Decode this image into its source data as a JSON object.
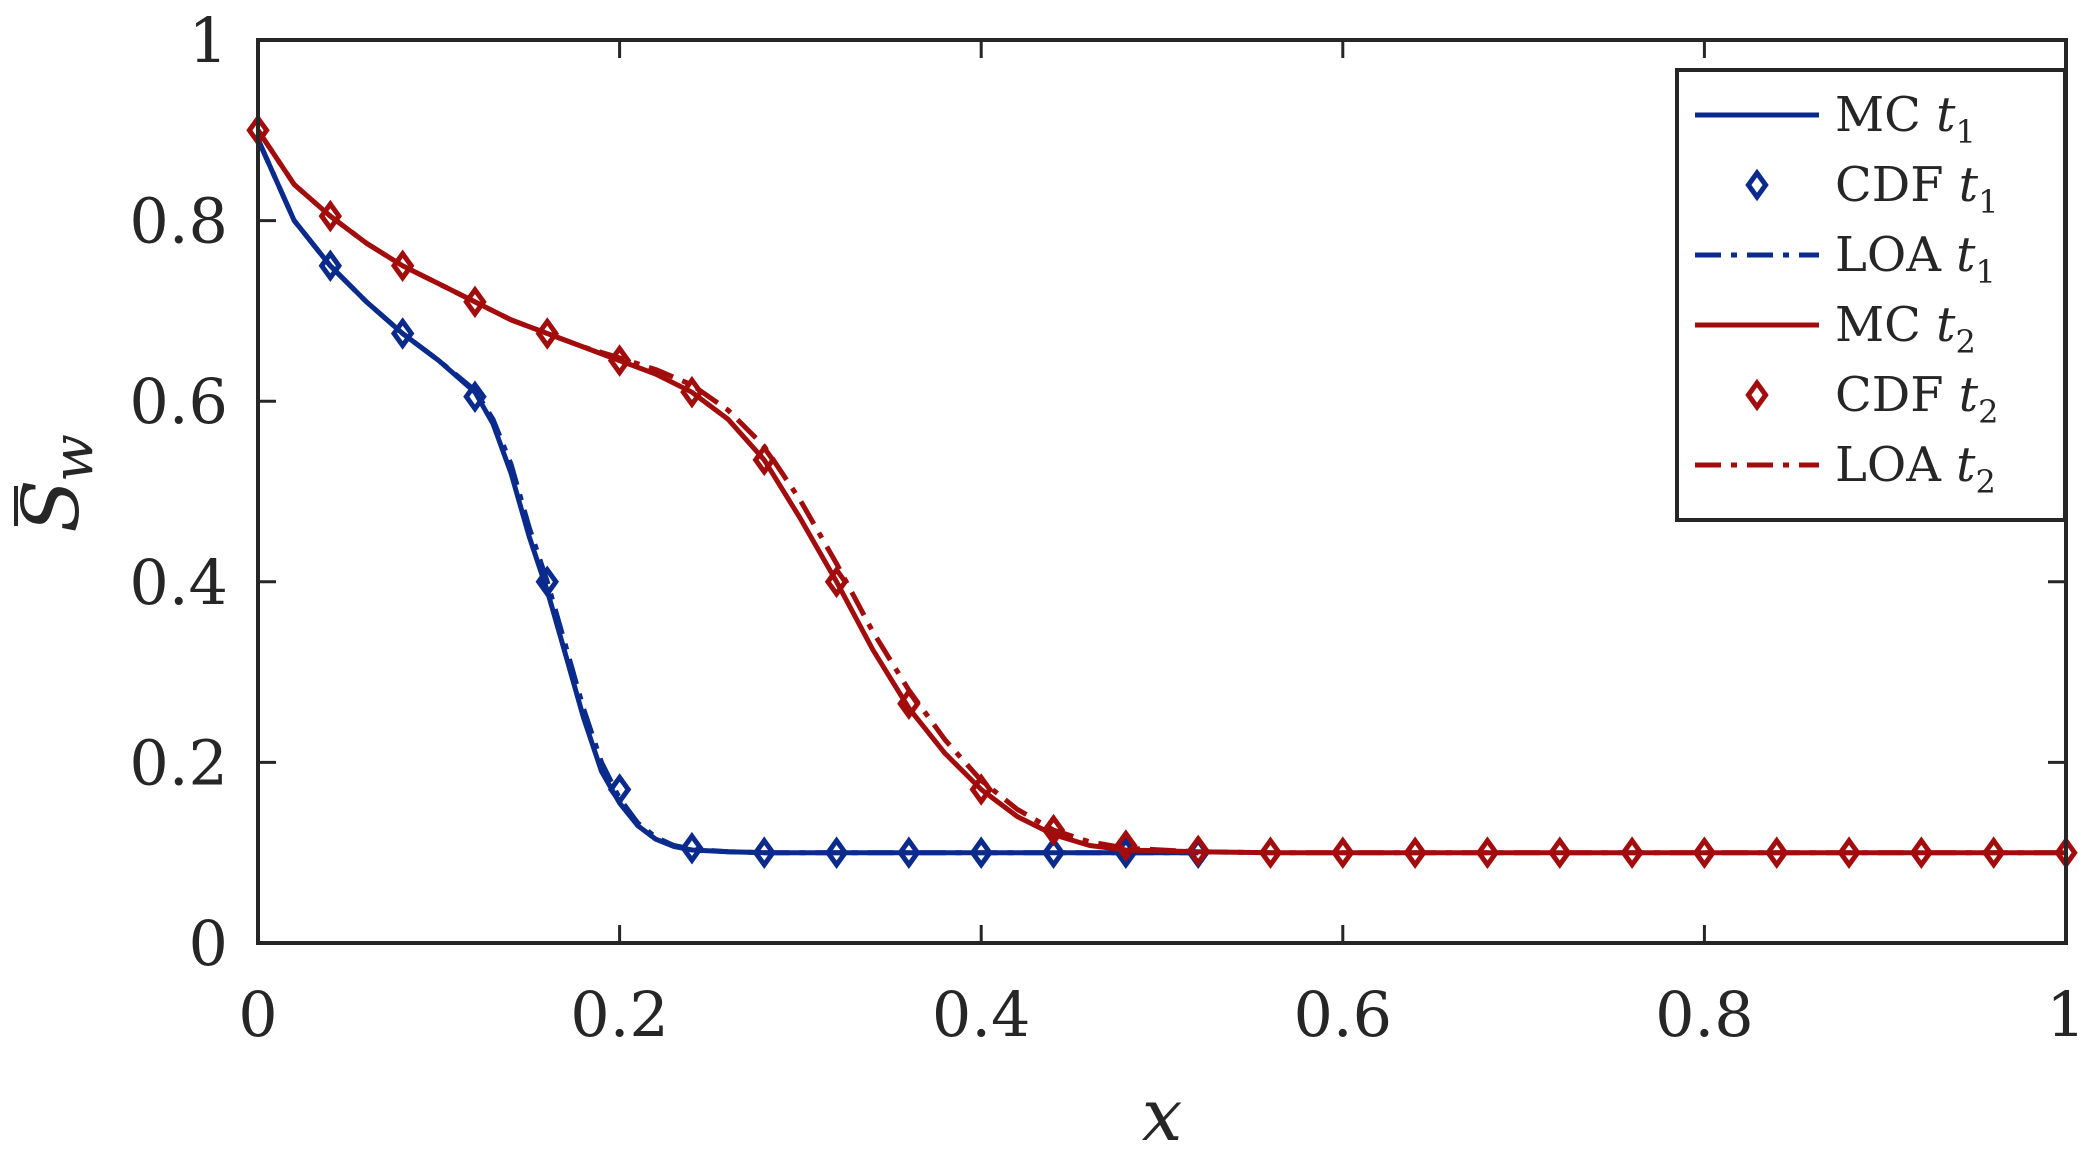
{
  "chart_data": {
    "type": "line",
    "xlabel": "x",
    "ylabel": {
      "base": "S",
      "sub": "w",
      "bar": true
    },
    "xlim": [
      0,
      1
    ],
    "ylim": [
      0,
      1
    ],
    "xticks": [
      0,
      0.2,
      0.4,
      0.6,
      0.8,
      1
    ],
    "xtick_labels": [
      "0",
      "0.2",
      "0.4",
      "0.6",
      "0.8",
      "1"
    ],
    "yticks": [
      0,
      0.2,
      0.4,
      0.6,
      0.8,
      1
    ],
    "ytick_labels": [
      "0",
      "0.2",
      "0.4",
      "0.6",
      "0.8",
      "1"
    ],
    "grid": false,
    "legend_position": "top-right",
    "colors": {
      "blue": "#0a2a8c",
      "red": "#a30c0c",
      "axis": "#262626"
    },
    "series": [
      {
        "name": "MC",
        "sub": "1",
        "color": "blue",
        "style": "solid",
        "x": [
          0,
          0.02,
          0.04,
          0.06,
          0.08,
          0.1,
          0.12,
          0.13,
          0.14,
          0.15,
          0.16,
          0.17,
          0.18,
          0.19,
          0.2,
          0.21,
          0.22,
          0.23,
          0.24,
          0.26,
          0.28,
          0.32,
          0.4,
          0.52
        ],
        "y": [
          0.89,
          0.8,
          0.75,
          0.71,
          0.675,
          0.645,
          0.61,
          0.575,
          0.52,
          0.45,
          0.39,
          0.32,
          0.25,
          0.19,
          0.155,
          0.13,
          0.115,
          0.107,
          0.103,
          0.101,
          0.1,
          0.1,
          0.1,
          0.1
        ]
      },
      {
        "name": "CDF",
        "sub": "1",
        "color": "blue",
        "style": "markers",
        "x": [
          0.04,
          0.08,
          0.12,
          0.16,
          0.2,
          0.24,
          0.28,
          0.32,
          0.36,
          0.4,
          0.44,
          0.48,
          0.52
        ],
        "y": [
          0.75,
          0.675,
          0.605,
          0.4,
          0.17,
          0.105,
          0.1,
          0.1,
          0.1,
          0.1,
          0.1,
          0.1,
          0.1
        ]
      },
      {
        "name": "LOA",
        "sub": "1",
        "color": "blue",
        "style": "dashdot",
        "x": [
          0,
          0.02,
          0.04,
          0.06,
          0.08,
          0.1,
          0.12,
          0.13,
          0.14,
          0.15,
          0.16,
          0.17,
          0.18,
          0.19,
          0.2,
          0.21,
          0.22,
          0.23,
          0.24,
          0.26,
          0.28,
          0.32,
          0.4,
          0.52
        ],
        "y": [
          0.89,
          0.8,
          0.75,
          0.71,
          0.675,
          0.645,
          0.612,
          0.58,
          0.53,
          0.46,
          0.4,
          0.33,
          0.26,
          0.2,
          0.16,
          0.133,
          0.117,
          0.108,
          0.104,
          0.101,
          0.1,
          0.1,
          0.1,
          0.1
        ]
      },
      {
        "name": "MC",
        "sub": "2",
        "color": "red",
        "style": "solid",
        "x": [
          0,
          0.02,
          0.04,
          0.06,
          0.08,
          0.1,
          0.12,
          0.14,
          0.16,
          0.18,
          0.2,
          0.22,
          0.24,
          0.26,
          0.28,
          0.3,
          0.32,
          0.34,
          0.36,
          0.38,
          0.4,
          0.42,
          0.44,
          0.46,
          0.48,
          0.52,
          0.56,
          0.6,
          1.0
        ],
        "y": [
          0.9,
          0.84,
          0.805,
          0.775,
          0.75,
          0.73,
          0.71,
          0.69,
          0.675,
          0.66,
          0.645,
          0.63,
          0.61,
          0.58,
          0.535,
          0.47,
          0.4,
          0.325,
          0.26,
          0.21,
          0.17,
          0.14,
          0.12,
          0.108,
          0.103,
          0.101,
          0.1,
          0.1,
          0.1
        ]
      },
      {
        "name": "CDF",
        "sub": "2",
        "color": "red",
        "style": "markers",
        "x": [
          0,
          0.04,
          0.08,
          0.12,
          0.16,
          0.2,
          0.24,
          0.28,
          0.32,
          0.36,
          0.4,
          0.44,
          0.48,
          0.52,
          0.56,
          0.6,
          0.64,
          0.68,
          0.72,
          0.76,
          0.8,
          0.84,
          0.88,
          0.92,
          0.96,
          1.0
        ],
        "y": [
          0.9,
          0.805,
          0.75,
          0.71,
          0.675,
          0.645,
          0.61,
          0.535,
          0.4,
          0.265,
          0.17,
          0.125,
          0.108,
          0.102,
          0.1,
          0.1,
          0.1,
          0.1,
          0.1,
          0.1,
          0.1,
          0.1,
          0.1,
          0.1,
          0.1,
          0.1
        ]
      },
      {
        "name": "LOA",
        "sub": "2",
        "color": "red",
        "style": "dashdot",
        "x": [
          0,
          0.02,
          0.04,
          0.06,
          0.08,
          0.1,
          0.12,
          0.14,
          0.16,
          0.18,
          0.2,
          0.22,
          0.24,
          0.26,
          0.28,
          0.3,
          0.32,
          0.34,
          0.36,
          0.38,
          0.4,
          0.42,
          0.44,
          0.46,
          0.48,
          0.52,
          0.56,
          0.6,
          1.0
        ],
        "y": [
          0.9,
          0.84,
          0.805,
          0.775,
          0.75,
          0.73,
          0.71,
          0.69,
          0.675,
          0.66,
          0.648,
          0.635,
          0.618,
          0.59,
          0.55,
          0.49,
          0.42,
          0.345,
          0.28,
          0.225,
          0.18,
          0.148,
          0.125,
          0.112,
          0.105,
          0.101,
          0.1,
          0.1,
          0.1
        ]
      }
    ]
  }
}
